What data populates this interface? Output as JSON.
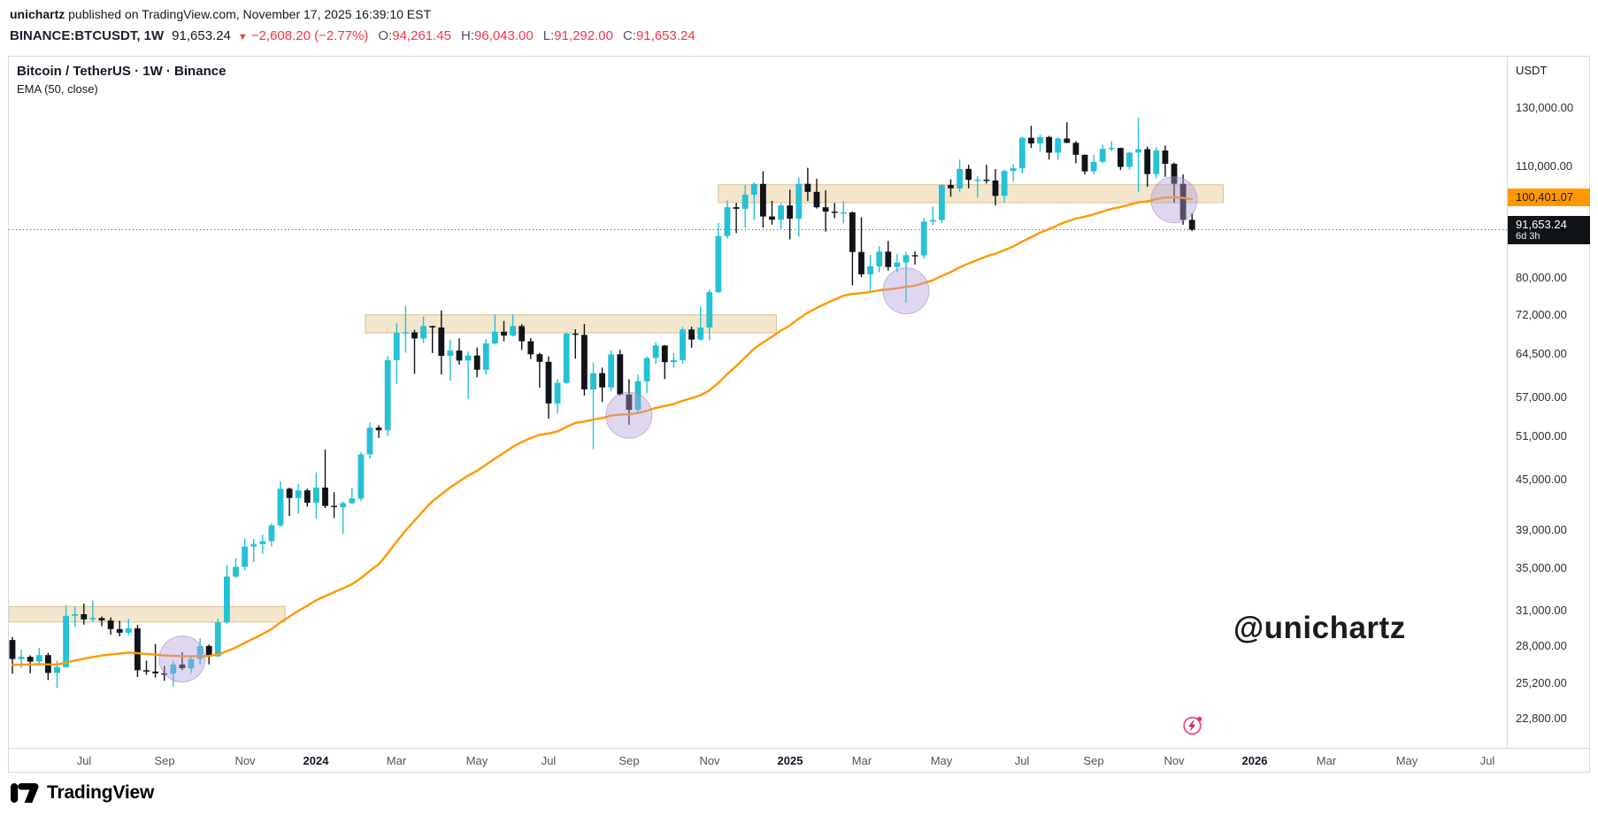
{
  "meta": {
    "publisher": "unichartz",
    "published_suffix": " published on TradingView.com, November 17, 2025 16:39:10 EST"
  },
  "quote_bar": {
    "symbol": "BINANCE:BTCUSDT, 1W",
    "last_price": "91,653.24",
    "direction_icon": "▼",
    "change": "−2,608.20 (−2.77%)",
    "ohlc": [
      {
        "label": "O:",
        "value": "94,261.45"
      },
      {
        "label": "H:",
        "value": "96,043.00"
      },
      {
        "label": "L:",
        "value": "91,292.00"
      },
      {
        "label": "C:",
        "value": "91,653.24"
      }
    ]
  },
  "legend": {
    "title": "Bitcoin / TetherUS · 1W · Binance",
    "indicator": "EMA (50, close)"
  },
  "watermark": "@unichartz",
  "price_axis": {
    "currency": "USDT",
    "ticks": [
      {
        "label": "130,000.00",
        "value": 130000
      },
      {
        "label": "110,000.00",
        "value": 110000
      },
      {
        "label": "80,000.00",
        "value": 80000
      },
      {
        "label": "72,000.00",
        "value": 72000
      },
      {
        "label": "64,500.00",
        "value": 64500
      },
      {
        "label": "57,000.00",
        "value": 57000
      },
      {
        "label": "51,000.00",
        "value": 51000
      },
      {
        "label": "45,000.00",
        "value": 45000
      },
      {
        "label": "39,000.00",
        "value": 39000
      },
      {
        "label": "35,000.00",
        "value": 35000
      },
      {
        "label": "31,000.00",
        "value": 31000
      },
      {
        "label": "28,000.00",
        "value": 28000
      },
      {
        "label": "25,200.00",
        "value": 25200
      },
      {
        "label": "22,800.00",
        "value": 22800
      }
    ],
    "ema_badge": {
      "text": "100,401.07",
      "value": 100401.07,
      "color": "#ff9800"
    },
    "price_badge": {
      "text": "91,653.24",
      "countdown": "6d 3h",
      "value": 91653.24,
      "color": "#101318"
    }
  },
  "time_axis": [
    {
      "label": "Jul",
      "index": 8
    },
    {
      "label": "Sep",
      "index": 17
    },
    {
      "label": "Nov",
      "index": 26
    },
    {
      "label": "2024",
      "index": 34,
      "major": true
    },
    {
      "label": "Mar",
      "index": 43
    },
    {
      "label": "May",
      "index": 52
    },
    {
      "label": "Jul",
      "index": 60
    },
    {
      "label": "Sep",
      "index": 69
    },
    {
      "label": "Nov",
      "index": 78
    },
    {
      "label": "2025",
      "index": 87,
      "major": true
    },
    {
      "label": "Mar",
      "index": 95
    },
    {
      "label": "May",
      "index": 104
    },
    {
      "label": "Jul",
      "index": 113
    },
    {
      "label": "Sep",
      "index": 121
    },
    {
      "label": "Nov",
      "index": 130
    },
    {
      "label": "2026",
      "index": 139,
      "major": true
    },
    {
      "label": "Mar",
      "index": 147
    },
    {
      "label": "May",
      "index": 156
    },
    {
      "label": "Jul",
      "index": 165
    }
  ],
  "footer": {
    "brand": "TradingView"
  },
  "chart_data": {
    "type": "candlestick",
    "title": "Bitcoin / TetherUS · 1W · Binance",
    "symbol": "BINANCE:BTCUSDT",
    "timeframe": "1W",
    "price_scale": "logarithmic",
    "ylim": [
      22000,
      135000
    ],
    "grid": false,
    "colors": {
      "up": "#25c1d5",
      "down": "#101318",
      "ema": "#ff9800"
    },
    "last_price": 91653.24,
    "ema": {
      "period": 50,
      "source": "close",
      "seed": 26500,
      "last_value": 100401.07
    },
    "weeks_format": [
      "week_start_date",
      "open",
      "high",
      "low",
      "close"
    ],
    "weeks": [
      [
        "2023-05-08",
        28450,
        28700,
        25850,
        26950
      ],
      [
        "2023-05-15",
        26950,
        27680,
        26300,
        27120
      ],
      [
        "2023-05-22",
        27120,
        27230,
        25880,
        26750
      ],
      [
        "2023-05-29",
        26750,
        27820,
        26480,
        27250
      ],
      [
        "2023-06-05",
        27250,
        27420,
        25380,
        25900
      ],
      [
        "2023-06-12",
        25900,
        26820,
        24800,
        26330
      ],
      [
        "2023-06-19",
        26330,
        31420,
        26300,
        30480
      ],
      [
        "2023-06-26",
        30480,
        31280,
        29520,
        30620
      ],
      [
        "2023-07-03",
        30620,
        31550,
        29720,
        30170
      ],
      [
        "2023-07-10",
        30170,
        31850,
        29950,
        30290
      ],
      [
        "2023-07-17",
        30290,
        30420,
        29580,
        30080
      ],
      [
        "2023-07-24",
        30080,
        30340,
        28880,
        29350
      ],
      [
        "2023-07-31",
        29350,
        30050,
        28750,
        29050
      ],
      [
        "2023-08-07",
        29050,
        30230,
        28850,
        29410
      ],
      [
        "2023-08-14",
        29410,
        29700,
        25600,
        26100
      ],
      [
        "2023-08-21",
        26100,
        26830,
        25750,
        26000
      ],
      [
        "2023-08-28",
        26000,
        28140,
        25550,
        25870
      ],
      [
        "2023-09-04",
        25870,
        26420,
        25330,
        25840
      ],
      [
        "2023-09-11",
        25840,
        26840,
        24920,
        26530
      ],
      [
        "2023-09-18",
        26530,
        27480,
        26100,
        26250
      ],
      [
        "2023-09-25",
        26250,
        27100,
        25880,
        26960
      ],
      [
        "2023-10-02",
        26960,
        28580,
        26530,
        27970
      ],
      [
        "2023-10-09",
        27970,
        28080,
        26540,
        27160
      ],
      [
        "2023-10-16",
        27160,
        30220,
        27100,
        29920
      ],
      [
        "2023-10-23",
        29920,
        35250,
        29800,
        34090
      ],
      [
        "2023-10-30",
        34090,
        35920,
        33950,
        35050
      ],
      [
        "2023-11-06",
        35050,
        38020,
        34720,
        37140
      ],
      [
        "2023-11-13",
        37140,
        37940,
        35550,
        37390
      ],
      [
        "2023-11-20",
        37390,
        38420,
        36380,
        37710
      ],
      [
        "2023-11-27",
        37710,
        39680,
        37150,
        39460
      ],
      [
        "2023-12-04",
        39460,
        44730,
        39280,
        43790
      ],
      [
        "2023-12-11",
        43790,
        43940,
        40530,
        42640
      ],
      [
        "2023-12-18",
        42640,
        44390,
        40800,
        43580
      ],
      [
        "2023-12-25",
        43580,
        43800,
        41620,
        42070
      ],
      [
        "2024-01-01",
        42070,
        45880,
        40170,
        43940
      ],
      [
        "2024-01-08",
        43940,
        48970,
        41450,
        41700
      ],
      [
        "2024-01-15",
        41700,
        43350,
        40280,
        41550
      ],
      [
        "2024-01-22",
        41550,
        42240,
        38500,
        42030
      ],
      [
        "2024-01-29",
        42030,
        43880,
        41880,
        42580
      ],
      [
        "2024-02-05",
        42580,
        48590,
        42260,
        48290
      ],
      [
        "2024-02-12",
        48290,
        52880,
        47710,
        52120
      ],
      [
        "2024-02-19",
        52120,
        52490,
        50620,
        51730
      ],
      [
        "2024-02-26",
        51730,
        63970,
        50930,
        63170
      ],
      [
        "2024-03-04",
        63170,
        70180,
        59010,
        68310
      ],
      [
        "2024-03-11",
        68310,
        73780,
        64530,
        68390
      ],
      [
        "2024-03-18",
        68390,
        68900,
        60770,
        67210
      ],
      [
        "2024-03-25",
        67210,
        71560,
        66380,
        69640
      ],
      [
        "2024-04-01",
        69640,
        69710,
        64480,
        69360
      ],
      [
        "2024-04-08",
        69360,
        72800,
        60660,
        63980
      ],
      [
        "2024-04-15",
        63980,
        67000,
        59600,
        64940
      ],
      [
        "2024-04-22",
        64940,
        67230,
        62370,
        63110
      ],
      [
        "2024-04-29",
        63110,
        64730,
        56520,
        64030
      ],
      [
        "2024-05-06",
        64030,
        65510,
        60170,
        61480
      ],
      [
        "2024-05-13",
        61480,
        67080,
        60610,
        66280
      ],
      [
        "2024-05-20",
        66280,
        71950,
        66060,
        68520
      ],
      [
        "2024-05-27",
        68520,
        70640,
        66670,
        67760
      ],
      [
        "2024-06-03",
        67760,
        71940,
        67580,
        69640
      ],
      [
        "2024-06-10",
        69640,
        69990,
        65050,
        66680
      ],
      [
        "2024-06-17",
        66680,
        67290,
        63380,
        64260
      ],
      [
        "2024-06-24",
        64260,
        64520,
        58400,
        62880
      ],
      [
        "2024-07-01",
        62880,
        63860,
        53500,
        55850
      ],
      [
        "2024-07-08",
        55850,
        59850,
        54260,
        59230
      ],
      [
        "2024-07-15",
        59230,
        68380,
        59050,
        68160
      ],
      [
        "2024-07-22",
        68160,
        69000,
        63460,
        67910
      ],
      [
        "2024-07-29",
        67910,
        70080,
        57120,
        58120
      ],
      [
        "2024-08-05",
        58120,
        62740,
        49000,
        60880
      ],
      [
        "2024-08-12",
        60880,
        61850,
        56080,
        58450
      ],
      [
        "2024-08-19",
        58450,
        64950,
        57830,
        64250
      ],
      [
        "2024-08-26",
        64250,
        65050,
        57120,
        57300
      ],
      [
        "2024-09-02",
        57300,
        59820,
        52530,
        54840
      ],
      [
        "2024-09-09",
        54840,
        60620,
        54260,
        59490
      ],
      [
        "2024-09-16",
        59490,
        63840,
        57490,
        63570
      ],
      [
        "2024-09-23",
        63570,
        66480,
        62540,
        65880
      ],
      [
        "2024-09-30",
        65880,
        65970,
        59880,
        62820
      ],
      [
        "2024-10-07",
        62820,
        64450,
        61850,
        63190
      ],
      [
        "2024-10-14",
        63190,
        69400,
        62460,
        68960
      ],
      [
        "2024-10-21",
        68960,
        69510,
        65460,
        67010
      ],
      [
        "2024-10-28",
        67010,
        73620,
        66810,
        69360
      ],
      [
        "2024-11-04",
        69360,
        77270,
        66830,
        76680
      ],
      [
        "2024-11-11",
        76680,
        93430,
        76450,
        90010
      ],
      [
        "2024-11-18",
        90010,
        99540,
        89380,
        97720
      ],
      [
        "2024-11-25",
        97720,
        98930,
        90790,
        97280
      ],
      [
        "2024-12-02",
        97280,
        104080,
        92090,
        101240
      ],
      [
        "2024-12-09",
        101240,
        104900,
        94260,
        104440
      ],
      [
        "2024-12-16",
        104440,
        108270,
        92180,
        95170
      ],
      [
        "2024-12-23",
        95170,
        99490,
        92950,
        94300
      ],
      [
        "2024-12-30",
        94300,
        98870,
        91550,
        98210
      ],
      [
        "2025-01-06",
        98210,
        102720,
        89160,
        94560
      ],
      [
        "2025-01-13",
        94560,
        106390,
        89880,
        104450
      ],
      [
        "2025-01-20",
        104450,
        109350,
        99450,
        102080
      ],
      [
        "2025-01-27",
        102080,
        105970,
        97360,
        97690
      ],
      [
        "2025-02-03",
        97690,
        102540,
        91160,
        96490
      ],
      [
        "2025-02-10",
        96490,
        98870,
        94710,
        96120
      ],
      [
        "2025-02-17",
        96120,
        99420,
        93310,
        96270
      ],
      [
        "2025-02-24",
        96270,
        96510,
        78210,
        86010
      ],
      [
        "2025-03-03",
        86010,
        95000,
        80050,
        80710
      ],
      [
        "2025-03-10",
        80710,
        85310,
        76610,
        82580
      ],
      [
        "2025-03-17",
        82580,
        87470,
        81130,
        86090
      ],
      [
        "2025-03-24",
        86090,
        88770,
        81560,
        82400
      ],
      [
        "2025-03-31",
        82400,
        85520,
        81150,
        83460
      ],
      [
        "2025-04-07",
        83460,
        86010,
        74430,
        85230
      ],
      [
        "2025-04-14",
        85230,
        86130,
        82980,
        85170
      ],
      [
        "2025-04-21",
        85170,
        94720,
        84370,
        93780
      ],
      [
        "2025-04-28",
        93780,
        97890,
        92840,
        94210
      ],
      [
        "2025-05-05",
        94210,
        104320,
        93360,
        104110
      ],
      [
        "2025-05-12",
        104110,
        105820,
        100680,
        103120
      ],
      [
        "2025-05-19",
        103120,
        111920,
        102090,
        109010
      ],
      [
        "2025-05-26",
        109010,
        110290,
        103110,
        105640
      ],
      [
        "2025-06-02",
        105640,
        106790,
        100380,
        105690
      ],
      [
        "2025-06-09",
        105690,
        110290,
        104540,
        105470
      ],
      [
        "2025-06-16",
        105470,
        108920,
        98200,
        100950
      ],
      [
        "2025-06-23",
        100950,
        108790,
        98970,
        108320
      ],
      [
        "2025-06-30",
        108320,
        110530,
        105120,
        109210
      ],
      [
        "2025-07-07",
        109210,
        119460,
        107530,
        119110
      ],
      [
        "2025-07-14",
        119110,
        123250,
        115660,
        117190
      ],
      [
        "2025-07-21",
        117190,
        120180,
        114520,
        119380
      ],
      [
        "2025-07-28",
        119380,
        119720,
        111920,
        114170
      ],
      [
        "2025-08-04",
        114170,
        119280,
        111890,
        118860
      ],
      [
        "2025-08-11",
        118860,
        124480,
        117280,
        117390
      ],
      [
        "2025-08-18",
        117390,
        117990,
        110760,
        113470
      ],
      [
        "2025-08-25",
        113470,
        113580,
        107270,
        108230
      ],
      [
        "2025-09-01",
        108230,
        113480,
        107360,
        111190
      ],
      [
        "2025-09-08",
        111190,
        116780,
        110770,
        115370
      ],
      [
        "2025-09-15",
        115370,
        117880,
        114580,
        115690
      ],
      [
        "2025-09-22",
        115690,
        115790,
        108660,
        109620
      ],
      [
        "2025-09-29",
        109620,
        114480,
        108790,
        114170
      ],
      [
        "2025-10-06",
        114170,
        126190,
        101960,
        115280
      ],
      [
        "2025-10-13",
        115280,
        116090,
        103570,
        107390
      ],
      [
        "2025-10-20",
        107390,
        115970,
        106080,
        114860
      ],
      [
        "2025-10-27",
        114860,
        116480,
        106550,
        110580
      ],
      [
        "2025-11-03",
        110580,
        110970,
        98920,
        104460
      ],
      [
        "2025-11-10",
        104460,
        107280,
        92960,
        94261.45
      ],
      [
        "2025-11-17",
        94261.45,
        96043,
        91292,
        91653.24
      ]
    ],
    "zones": [
      {
        "name": "zone-30k-31k",
        "top": 31300,
        "bottom": 29950,
        "start_index": -0.5,
        "end_index": 30
      },
      {
        "name": "zone-68k-72k",
        "top": 71900,
        "bottom": 68300,
        "start_index": 40,
        "end_index": 85
      },
      {
        "name": "zone-99k-104k",
        "top": 104200,
        "bottom": 99000,
        "start_index": 79.5,
        "end_index": 135
      }
    ],
    "ema_touch_circles": [
      {
        "index": 19,
        "price": 26950
      },
      {
        "index": 69,
        "price": 54000
      },
      {
        "index": 100,
        "price": 77000
      },
      {
        "index": 130,
        "price": 99800
      }
    ]
  }
}
